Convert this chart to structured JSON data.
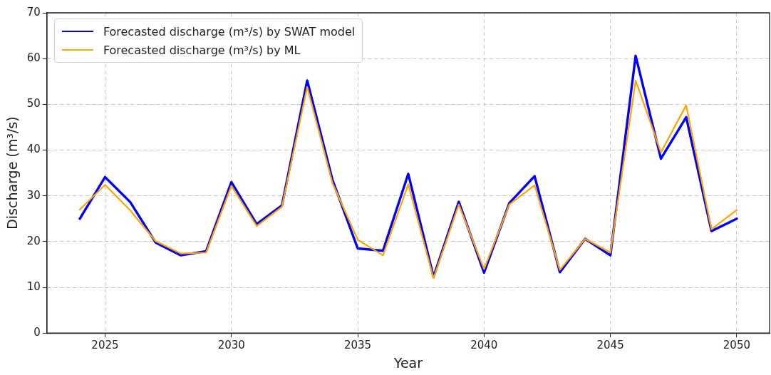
{
  "chart_data": {
    "type": "line",
    "xlabel": "Year",
    "ylabel": "Discharge (m³/s)",
    "x": [
      2024,
      2025,
      2026,
      2027,
      2028,
      2029,
      2030,
      2031,
      2032,
      2033,
      2034,
      2035,
      2036,
      2037,
      2038,
      2039,
      2040,
      2041,
      2042,
      2043,
      2044,
      2045,
      2046,
      2047,
      2048,
      2049,
      2050
    ],
    "series": [
      {
        "name": "Forecasted discharge (m³/s) by SWAT model",
        "color": "#0000ff",
        "values": [
          25.0,
          34.1,
          28.6,
          19.8,
          17.0,
          17.9,
          33.0,
          23.8,
          27.9,
          55.2,
          33.5,
          18.5,
          18.0,
          34.8,
          12.3,
          28.7,
          13.2,
          28.4,
          34.3,
          13.3,
          20.6,
          17.0,
          60.6,
          38.1,
          47.2,
          22.3,
          25.0
        ]
      },
      {
        "name": "Forecasted discharge (m³/s) by ML",
        "color": "#ffa500",
        "values": [
          27.0,
          32.4,
          26.8,
          20.1,
          17.4,
          17.6,
          32.2,
          23.4,
          27.6,
          53.8,
          32.8,
          20.4,
          17.0,
          32.5,
          12.0,
          28.1,
          14.0,
          28.1,
          32.3,
          13.8,
          20.6,
          17.6,
          55.2,
          39.5,
          49.8,
          22.7,
          26.9
        ]
      }
    ],
    "xlim": [
      2022.7,
      2051.3
    ],
    "xticks": [
      2025,
      2030,
      2035,
      2040,
      2045,
      2050
    ],
    "ylim": [
      0,
      70
    ],
    "yticks": [
      0,
      10,
      20,
      30,
      40,
      50,
      60,
      70
    ],
    "grid": true,
    "legend": "top left",
    "marker": "none",
    "line_style": "solid"
  }
}
